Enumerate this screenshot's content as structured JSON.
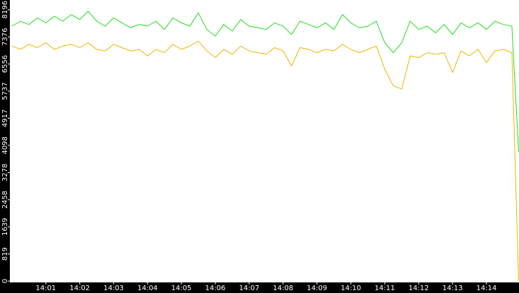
{
  "chart_data": {
    "type": "line",
    "x": [
      0,
      0.25,
      0.5,
      0.75,
      1,
      1.25,
      1.5,
      1.75,
      2,
      2.25,
      2.5,
      2.75,
      3,
      3.25,
      3.5,
      3.75,
      4,
      4.25,
      4.5,
      4.75,
      5,
      5.25,
      5.5,
      5.75,
      6,
      6.25,
      6.5,
      6.75,
      7,
      7.25,
      7.5,
      7.75,
      8,
      8.25,
      8.5,
      8.75,
      9,
      9.25,
      9.5,
      9.75,
      10,
      10.25,
      10.5,
      10.75,
      11,
      11.25,
      11.5,
      11.75,
      12,
      12.25,
      12.5,
      12.75,
      13,
      13.25,
      13.5,
      13.75,
      14,
      14.25,
      14.5,
      14.75,
      14.95
    ],
    "series": [
      {
        "color": "#22dd22",
        "values": [
          7700,
          7850,
          7750,
          7950,
          7800,
          8000,
          7850,
          8050,
          7900,
          8150,
          7850,
          7700,
          7950,
          7800,
          7650,
          7750,
          7700,
          7850,
          7600,
          7950,
          7800,
          7700,
          8100,
          7600,
          7400,
          7750,
          7550,
          7900,
          7700,
          7650,
          7600,
          7800,
          7700,
          7450,
          7850,
          7750,
          7650,
          7800,
          7600,
          8050,
          7800,
          7650,
          7700,
          7850,
          7200,
          6900,
          7200,
          7850,
          7600,
          7700,
          7500,
          7750,
          7450,
          7800,
          7650,
          7800,
          7600,
          7850,
          7750,
          7700,
          3900
        ]
      },
      {
        "color": "#f0b400",
        "values": [
          7100,
          7000,
          7150,
          7050,
          7200,
          7000,
          7100,
          7150,
          7050,
          7200,
          7000,
          6950,
          7150,
          7050,
          6950,
          7000,
          6800,
          7000,
          6900,
          7150,
          7000,
          7100,
          7250,
          6950,
          6750,
          7000,
          6850,
          7100,
          6950,
          6900,
          6850,
          7050,
          6950,
          6500,
          7050,
          7000,
          6900,
          7000,
          6950,
          7150,
          7000,
          6900,
          7000,
          7100,
          6400,
          5900,
          5800,
          6800,
          6750,
          6900,
          6850,
          6900,
          6300,
          6950,
          6800,
          7000,
          6600,
          6950,
          7000,
          6900,
          0
        ]
      }
    ],
    "xlim": [
      -0.06,
      14.96
    ],
    "xticks": [
      {
        "value": 1,
        "label": "14:01"
      },
      {
        "value": 2,
        "label": "14:02"
      },
      {
        "value": 3,
        "label": "14:03"
      },
      {
        "value": 4,
        "label": "14:04"
      },
      {
        "value": 5,
        "label": "14:05"
      },
      {
        "value": 6,
        "label": "14:06"
      },
      {
        "value": 7,
        "label": "14:07"
      },
      {
        "value": 8,
        "label": "14:08"
      },
      {
        "value": 9,
        "label": "14:09"
      },
      {
        "value": 10,
        "label": "14:10"
      },
      {
        "value": 11,
        "label": "14:11"
      },
      {
        "value": 12,
        "label": "14:12"
      },
      {
        "value": 13,
        "label": "14:13"
      },
      {
        "value": 14,
        "label": "14:14"
      }
    ],
    "ylim": [
      -40,
      8490
    ],
    "yticks": [
      0,
      819,
      1639,
      2458,
      3278,
      4098,
      4917,
      5737,
      6556,
      7376,
      8196
    ]
  }
}
